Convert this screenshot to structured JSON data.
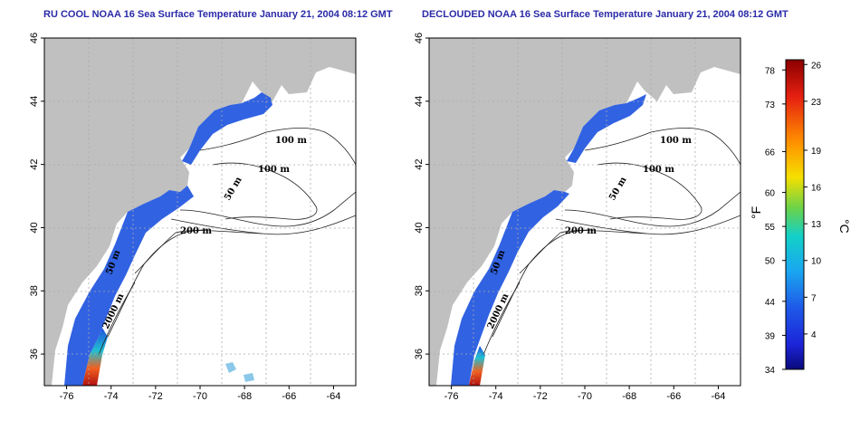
{
  "panels": [
    {
      "title": "RU COOL NOAA 16 Sea Surface Temperature January 21, 2004 08:12 GMT",
      "contour_labels": [
        "100 m",
        "100 m",
        "50 m",
        "200 m",
        "50 m",
        "2000 m"
      ]
    },
    {
      "title": "DECLOUDED NOAA 16 Sea Surface Temperature January 21, 2004 08:12 GMT",
      "contour_labels": [
        "100 m",
        "100 m",
        "50 m",
        "200 m",
        "50 m",
        "2000 m"
      ]
    }
  ],
  "axes": {
    "x_ticks": [
      "-76",
      "-74",
      "-72",
      "-70",
      "-68",
      "-66",
      "-64"
    ],
    "y_ticks": [
      "36",
      "38",
      "40",
      "42",
      "44",
      "46"
    ],
    "x_range": [
      -77,
      -63
    ],
    "y_range": [
      35,
      46
    ],
    "grid": "dotted"
  },
  "colorbar": {
    "fahrenheit_ticks": [
      "78",
      "73",
      "66",
      "60",
      "55",
      "50",
      "44",
      "39",
      "34"
    ],
    "celsius_ticks": [
      "26",
      "23",
      "19",
      "16",
      "13",
      "10",
      "7",
      "4"
    ],
    "fahrenheit_label": "°F",
    "celsius_label": "°C",
    "colors": [
      "#8b0000",
      "#e52010",
      "#ff8c00",
      "#f5e000",
      "#6ad24a",
      "#12d0c8",
      "#1aa8f0",
      "#1e5ae8",
      "#1c24d8",
      "#0a0a7a"
    ]
  },
  "colors": {
    "land": "#c0c0c0",
    "title": "#2a2aa8",
    "cold_water": "#1f55e0",
    "warm_water": "#e53010"
  }
}
